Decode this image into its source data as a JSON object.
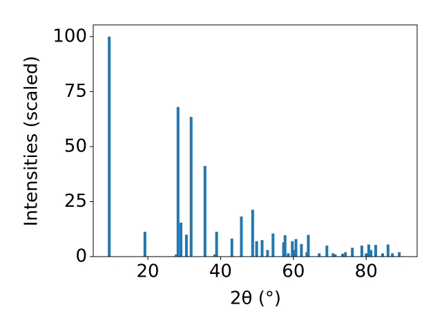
{
  "chart_data": {
    "type": "bar",
    "x_label": "2θ (°)",
    "y_label": "Intensities (scaled)",
    "x": [
      9.4,
      19.2,
      27.8,
      28.3,
      29.1,
      30.6,
      31.9,
      35.7,
      38.4,
      38.9,
      43.1,
      45.7,
      48.8,
      49.9,
      51.4,
      52.9,
      54.4,
      57.3,
      57.7,
      58.6,
      59.7,
      60.1,
      60.7,
      62.2,
      63.7,
      64.1,
      67.1,
      69.2,
      70.9,
      71.5,
      73.5,
      74.3,
      76.2,
      78.8,
      80.0,
      80.7,
      81.3,
      82.6,
      84.5,
      86.0,
      87.2,
      89.1
    ],
    "values": [
      100,
      11.3,
      1,
      68,
      15.4,
      10,
      63.5,
      41.2,
      1,
      11.3,
      8.2,
      18.2,
      21.3,
      7,
      7.5,
      3,
      10.5,
      6.5,
      9.7,
      1.5,
      7,
      3,
      8,
      5.7,
      2,
      9.9,
      1.5,
      5,
      1.5,
      1,
      1.3,
      2,
      4,
      5,
      1.5,
      5.5,
      3,
      5.3,
      1.5,
      5.5,
      1.5,
      2
    ],
    "color": "#1f77b4",
    "xlim": [
      5,
      94
    ],
    "ylim": [
      0,
      105.3
    ],
    "xticks": [
      20,
      40,
      60,
      80
    ],
    "yticks": [
      0,
      25,
      50,
      75,
      100
    ]
  }
}
